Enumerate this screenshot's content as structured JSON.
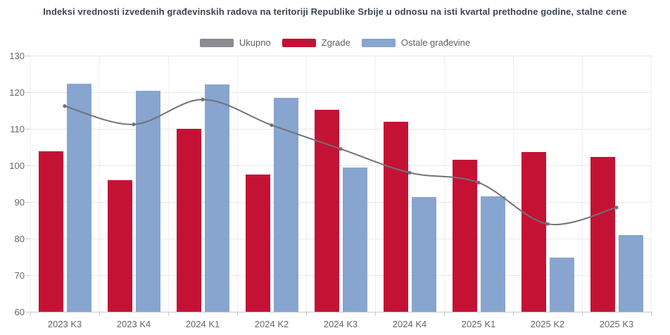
{
  "chart": {
    "title": "Indeksi vrednosti izvedenih građevinskih radova na teritoriji Republike Srbije u odnosu na isti kvartal prethodne godine, stalne cene"
  },
  "chart_data": {
    "type": "combo-column-spline",
    "title": "Indeksi vrednosti izvedenih građevinskih radova na teritoriji Republike Srbije u odnosu na isti kvartal prethodne godine, stalne cene",
    "categories": [
      "2023 K3",
      "2023 K4",
      "2024 K1",
      "2024 K2",
      "2024 K3",
      "2024 K4",
      "2025 K1",
      "2025 K2",
      "2025 K3"
    ],
    "series": [
      {
        "key": "ukupno",
        "name": "Ukupno",
        "type": "spline",
        "color": "#8b8b94",
        "line_color": "#71717a",
        "values": [
          116.2,
          111.2,
          118.0,
          111.0,
          104.5,
          98.0,
          95.3,
          84.0,
          88.5
        ]
      },
      {
        "key": "zgrade",
        "name": "Zgrade",
        "type": "column",
        "color": "#c41235",
        "values": [
          103.8,
          96.0,
          110.0,
          97.5,
          115.2,
          111.9,
          101.5,
          103.7,
          102.3
        ]
      },
      {
        "key": "ostale-gradjevine",
        "name": "Ostale građevine",
        "type": "column",
        "color": "#87a5ce",
        "values": [
          122.3,
          120.3,
          122.1,
          118.4,
          99.5,
          91.4,
          91.6,
          74.9,
          81.0
        ]
      }
    ],
    "ylim": [
      60,
      130
    ],
    "y_ticks": [
      60,
      70,
      80,
      90,
      100,
      110,
      120,
      130
    ],
    "grid": true,
    "legend_position": "top",
    "xlabel": "",
    "ylabel": ""
  }
}
